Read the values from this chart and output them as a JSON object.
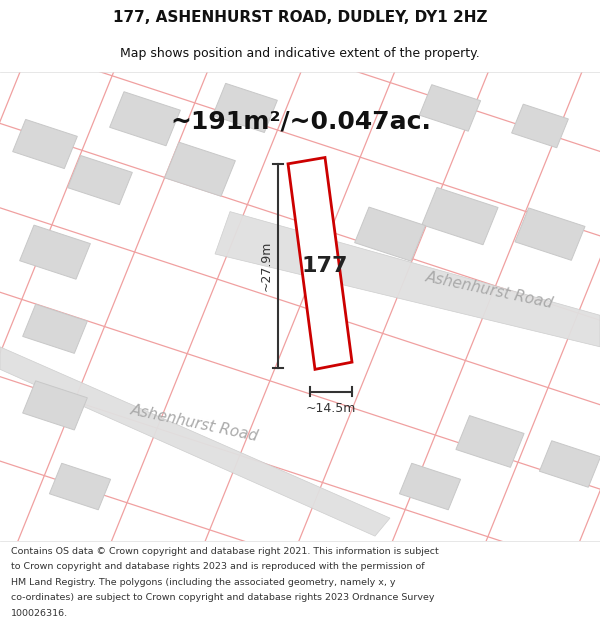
{
  "title_line1": "177, ASHENHURST ROAD, DUDLEY, DY1 2HZ",
  "title_line2": "Map shows position and indicative extent of the property.",
  "area_text": "~191m²/~0.047ac.",
  "property_number": "177",
  "dim_height": "~27.9m",
  "dim_width": "~14.5m",
  "road_label1": "Ashenhurst Road",
  "road_label2": "Ashenhurst Road",
  "footer_lines": [
    "Contains OS data © Crown copyright and database right 2021. This information is subject",
    "to Crown copyright and database rights 2023 and is reproduced with the permission of",
    "HM Land Registry. The polygons (including the associated geometry, namely x, y",
    "co-ordinates) are subject to Crown copyright and database rights 2023 Ordnance Survey",
    "100026316."
  ],
  "background_color": "#ffffff",
  "map_bg_color": "#fafafa",
  "building_fill": "#d8d8d8",
  "building_edge": "#c8c8c8",
  "road_fill": "#e0e0e0",
  "road_edge": "#cccccc",
  "property_fill": "#ffffff",
  "property_edge": "#cc0000",
  "dim_color": "#333333",
  "road_text_color": "#aaaaaa",
  "title_color": "#111111",
  "footer_color": "#333333",
  "grid_line_color": "#f0a0a0",
  "title_fontsize": 11,
  "subtitle_fontsize": 9,
  "area_fontsize": 18,
  "number_fontsize": 16,
  "dim_fontsize": 9,
  "road_fontsize": 11,
  "footer_fontsize": 6.8
}
